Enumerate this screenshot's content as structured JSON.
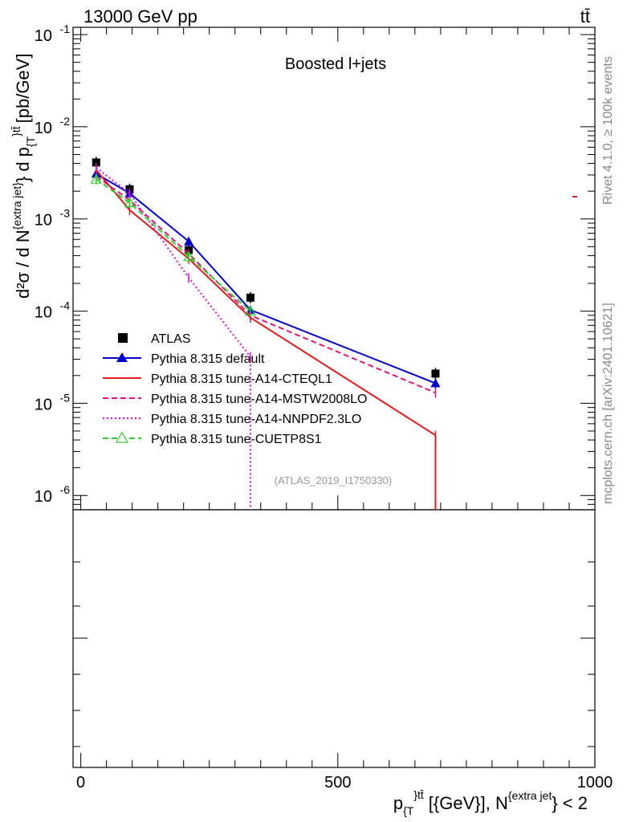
{
  "header": {
    "left": "13000 GeV pp",
    "right": "tt̄",
    "label": "Boosted l+jets",
    "analysis_id": "(ATLAS_2019_I1750330)",
    "side_top": "Rivet 4.1.0, ≥ 100k events",
    "side_bottom": "mcplots.cern.ch [arXiv:2401.10621]"
  },
  "axes": {
    "ylabel_main": "d²σ  /  d N",
    "ylabel_sup": "{extra jet}",
    "ylabel_mid": "} d p",
    "ylabel_sub": "{T",
    "ylabel_sup2": "}tt̄",
    "ylabel_unit": "[pb/GeV]",
    "xlabel_main": "p",
    "xlabel_sub": "{T",
    "xlabel_sup": "}tt̄",
    "xlabel_rest": "[{GeV}], N",
    "xlabel_sup2": "{extra jet",
    "xlabel_end": "} < 2",
    "ytick_labels": [
      {
        "base": "10",
        "exp": "-1"
      },
      {
        "base": "10",
        "exp": "-2"
      },
      {
        "base": "10",
        "exp": "-3"
      },
      {
        "base": "10",
        "exp": "-4"
      },
      {
        "base": "10",
        "exp": "-5"
      },
      {
        "base": "10",
        "exp": "-6"
      }
    ],
    "xtick_labels": [
      "0",
      "500",
      "1000"
    ]
  },
  "legend": [
    {
      "label": "ATLAS",
      "color": "#000000",
      "style": "marker-square"
    },
    {
      "label": "Pythia 8.315 default",
      "color": "#0000cc",
      "style": "solid-triangle"
    },
    {
      "label": "Pythia 8.315 tune-A14-CTEQL1",
      "color": "#e31a1c",
      "style": "solid"
    },
    {
      "label": "Pythia 8.315 tune-A14-MSTW2008LO",
      "color": "#e0157a",
      "style": "dashed"
    },
    {
      "label": "Pythia 8.315 tune-A14-NNPDF2.3LO",
      "color": "#e010c8",
      "style": "dotted"
    },
    {
      "label": "Pythia 8.315 tune-CUETP8S1",
      "color": "#33cc33",
      "style": "dashed-open-triangle"
    }
  ],
  "chart_data": {
    "type": "line",
    "xlabel": "p_{T}^{tt̄} [{GeV}], N^{extra jet} < 2",
    "ylabel": "d²σ / d N^{extra jet} d p_{T}^{tt̄} [pb/GeV]",
    "xlim": [
      -15,
      1000
    ],
    "ylim": [
      7e-07,
      0.12
    ],
    "yscale": "log",
    "x": [
      30,
      95,
      210,
      330,
      690
    ],
    "series": [
      {
        "name": "ATLAS",
        "color": "#000000",
        "values": [
          0.0041,
          0.0021,
          0.00046,
          0.00014,
          2.1e-05
        ]
      },
      {
        "name": "Pythia 8.315 default",
        "color": "#0000cc",
        "values": [
          0.0031,
          0.0019,
          0.00057,
          0.000103,
          1.65e-05
        ]
      },
      {
        "name": "Pythia 8.315 tune-A14-CTEQL1",
        "color": "#e31a1c",
        "values": [
          0.0034,
          0.00125,
          0.00037,
          8.5e-05,
          4.5e-06
        ]
      },
      {
        "name": "Pythia 8.315 tune-A14-MSTW2008LO",
        "color": "#e0157a",
        "values": [
          0.0029,
          0.0016,
          0.00042,
          9e-05,
          1.3e-05
        ]
      },
      {
        "name": "Pythia 8.315 tune-A14-NNPDF2.3LO",
        "color": "#e010c8",
        "values": [
          0.0036,
          0.0019,
          0.00023,
          3.2e-05,
          null
        ]
      },
      {
        "name": "Pythia 8.315 tune-CUETP8S1",
        "color": "#33cc33",
        "values": [
          0.0027,
          0.0015,
          0.00039,
          0.0001,
          null
        ]
      }
    ]
  }
}
